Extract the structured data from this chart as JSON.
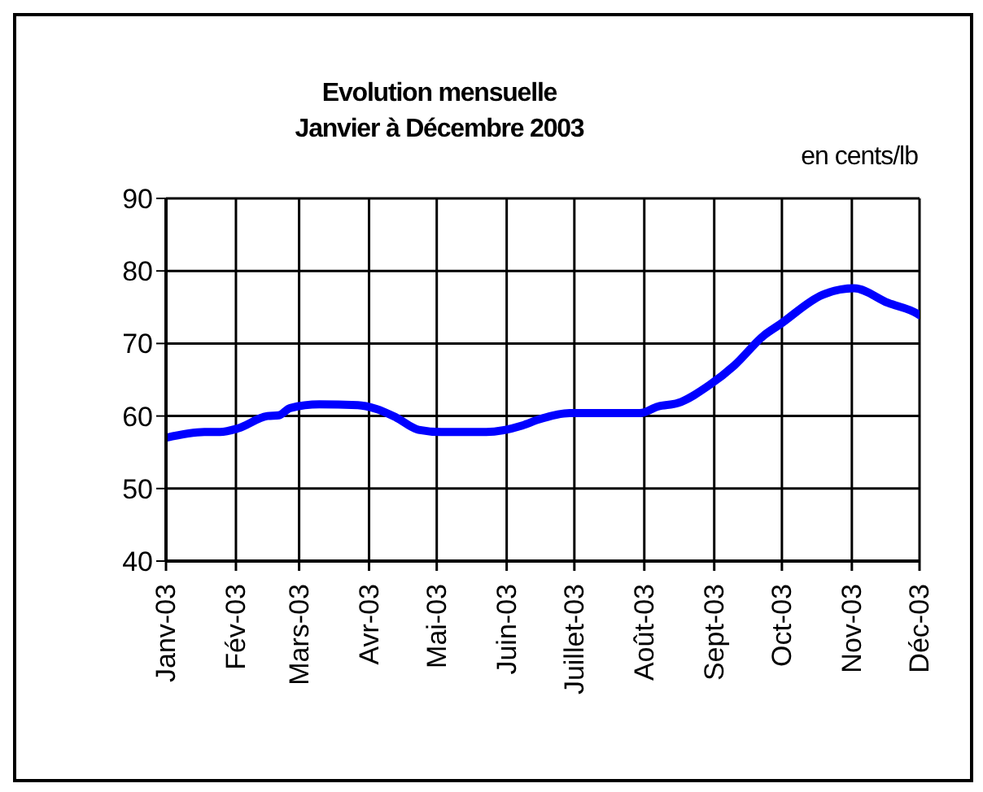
{
  "chart_data": {
    "type": "line",
    "title": "Evolution mensuelle",
    "subtitle": "Janvier à Décembre 2003",
    "ylabel": "en cents/lb",
    "x": [
      "2003-01-01",
      "2003-01-18",
      "2003-01-25",
      "2003-02-02",
      "2003-02-15",
      "2003-02-20",
      "2003-02-25",
      "2003-03-10",
      "2003-03-27",
      "2003-04-04",
      "2003-04-13",
      "2003-04-23",
      "2003-05-03",
      "2003-05-23",
      "2003-06-08",
      "2003-06-15",
      "2003-06-29",
      "2003-07-30",
      "2003-08-07",
      "2003-08-16",
      "2003-08-30",
      "2003-09-10",
      "2003-09-23",
      "2003-09-30",
      "2003-10-19",
      "2003-11-02",
      "2003-11-17",
      "2003-11-30",
      "2003-12-01"
    ],
    "series": [
      {
        "color": "#0000ff",
        "values": [
          57.0,
          57.8,
          57.8,
          58.3,
          60.0,
          60.1,
          61.1,
          61.6,
          61.5,
          61.0,
          59.8,
          58.1,
          57.8,
          57.8,
          58.7,
          59.5,
          60.4,
          60.4,
          61.3,
          61.8,
          64.3,
          67.0,
          71.1,
          72.6,
          76.7,
          77.6,
          75.6,
          74.1,
          73.9
        ]
      }
    ],
    "xlim": [
      "2003-01-01",
      "2003-12-01"
    ],
    "xticks": [
      {
        "value": "2003-01-01",
        "label": "Janv-03"
      },
      {
        "value": "2003-02-01",
        "label": "Fév-03"
      },
      {
        "value": "2003-03-01",
        "label": "Mars-03"
      },
      {
        "value": "2003-04-01",
        "label": "Avr-03"
      },
      {
        "value": "2003-05-01",
        "label": "Mai-03"
      },
      {
        "value": "2003-06-01",
        "label": "Juin-03"
      },
      {
        "value": "2003-07-01",
        "label": "Juillet-03"
      },
      {
        "value": "2003-08-01",
        "label": "Août-03"
      },
      {
        "value": "2003-09-01",
        "label": "Sept-03"
      },
      {
        "value": "2003-10-01",
        "label": "Oct-03"
      },
      {
        "value": "2003-11-01",
        "label": "Nov-03"
      },
      {
        "value": "2003-12-01",
        "label": "Déc-03"
      }
    ],
    "ylim": [
      40,
      90
    ],
    "yticks": [
      40,
      50,
      60,
      70,
      80,
      90
    ],
    "grid": true,
    "legend": false,
    "marker": "none",
    "line_style": "solid"
  }
}
